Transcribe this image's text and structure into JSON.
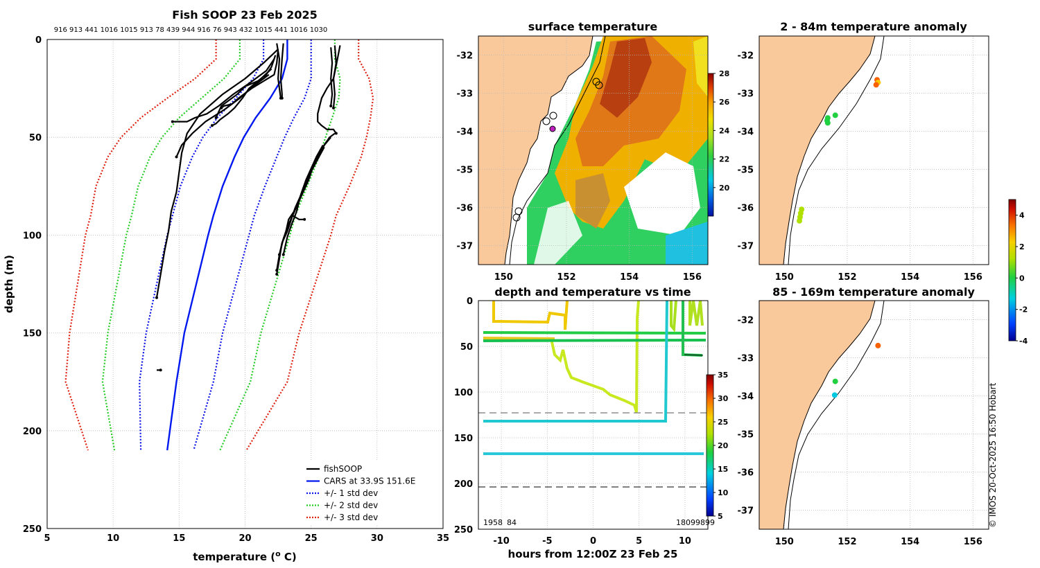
{
  "colors": {
    "land": "#F9C99B",
    "fishsoop": "#000000",
    "cars": "#0018F0",
    "std1": "#0A10E8",
    "std2": "#22CC22",
    "std3": "#E02010",
    "grid": "#b8b8b8"
  },
  "chart_data": [
    {
      "type": "line",
      "title": "Fish SOOP 23 Feb 2025",
      "top_numbers": "916 913 441 1016 1015 913 78 439 944 916 76 943 432 1015 441 1016 1030",
      "xlabel": "temperature (",
      "xlabel_sup": "o",
      "xlabel_tail": " C)",
      "ylabel": "depth (m)",
      "xlim": [
        5,
        35
      ],
      "ylim": [
        250,
        0
      ],
      "xticks": [
        "5",
        "10",
        "15",
        "20",
        "25",
        "30",
        "35"
      ],
      "yticks": [
        "0",
        "50",
        "100",
        "150",
        "200",
        "250"
      ],
      "legend_position": "bottom-right",
      "legend": [
        {
          "label": "fishSOOP",
          "style": "solid",
          "color": "#000000"
        },
        {
          "label": "CARS at 33.9S 151.6E",
          "style": "solid",
          "color": "#0018F0"
        },
        {
          "label": "+/- 1 std dev",
          "style": "dotted",
          "color": "#0A10E8"
        },
        {
          "label": "+/- 2 std dev",
          "style": "dotted",
          "color": "#22CC22"
        },
        {
          "label": "+/- 3 std dev",
          "style": "dotted",
          "color": "#E02010"
        }
      ],
      "cars_depth": [
        0,
        10,
        20,
        30,
        40,
        50,
        60,
        75,
        90,
        100,
        125,
        150,
        175,
        210
      ],
      "cars_mean": [
        23.2,
        23.2,
        22.8,
        21.9,
        20.8,
        19.9,
        19.2,
        18.3,
        17.6,
        17.2,
        16.3,
        15.4,
        14.8,
        14.1
      ],
      "cars_std": [
        1.8,
        1.8,
        2.2,
        2.6,
        2.9,
        3.1,
        3.2,
        3.2,
        3.1,
        3.1,
        3.0,
        2.9,
        2.8,
        2.0
      ],
      "fishsoop_profiles": [
        {
          "t": [
            22.4,
            22.6,
            22.5,
            22.6,
            22.7
          ],
          "d": [
            2,
            10,
            20,
            25,
            30
          ]
        },
        {
          "t": [
            22.9,
            22.8,
            22.7,
            22.8,
            22.8
          ],
          "d": [
            2,
            10,
            20,
            28,
            30
          ]
        },
        {
          "t": [
            22.5,
            22.4,
            22.2,
            20.5,
            19.5,
            19.0,
            18.4,
            18.2
          ],
          "d": [
            5,
            12,
            18,
            25,
            30,
            33,
            34,
            35
          ]
        },
        {
          "t": [
            22.3,
            22.0,
            21.4,
            20.0,
            19.4,
            18.2,
            17.8
          ],
          "d": [
            8,
            14,
            20,
            24,
            28,
            34,
            40
          ]
        },
        {
          "t": [
            22.2,
            21.6,
            20.4,
            19.1,
            18.0,
            17.1,
            16.2,
            15.6,
            14.5
          ],
          "d": [
            10,
            16,
            22,
            28,
            34,
            38,
            40,
            42,
            42
          ]
        },
        {
          "t": [
            22.0,
            21.2,
            20.3,
            19.8,
            19.2,
            18.7,
            18.1,
            17.8,
            17.5
          ],
          "d": [
            15,
            20,
            25,
            30,
            35,
            38,
            41,
            43,
            44
          ]
        },
        {
          "t": [
            21.8,
            20.6,
            19.6,
            18.4,
            17.0,
            16.0,
            15.2,
            14.8
          ],
          "d": [
            18,
            24,
            30,
            36,
            42,
            48,
            54,
            60
          ]
        },
        {
          "t": [
            22.5,
            21.4,
            20.0,
            18.3,
            16.6,
            15.6,
            15.2,
            15.0,
            14.8,
            14.4,
            14.2,
            13.9,
            13.6,
            13.3
          ],
          "d": [
            5,
            12,
            20,
            28,
            38,
            48,
            58,
            68,
            78,
            88,
            98,
            108,
            120,
            132
          ]
        },
        {
          "t": [
            13.3,
            13.6
          ],
          "d": [
            169,
            169
          ]
        },
        {
          "t": [
            26.5,
            26.6,
            26.5,
            26.6,
            26.5
          ],
          "d": [
            4,
            12,
            20,
            28,
            34
          ]
        },
        {
          "t": [
            26.8,
            26.9,
            26.7,
            26.8,
            26.7
          ],
          "d": [
            3,
            12,
            20,
            28,
            35
          ]
        },
        {
          "t": [
            27.2,
            27.0,
            26.7,
            26.2,
            25.8,
            25.5,
            25.5,
            25.8,
            26.2,
            26.7,
            26.9
          ],
          "d": [
            3,
            10,
            20,
            25,
            30,
            38,
            42,
            44,
            46,
            46,
            48
          ]
        },
        {
          "t": [
            26.8,
            26.4,
            26.0,
            25.5,
            25.0,
            24.6,
            24.2,
            23.9,
            23.5,
            23.2,
            22.9
          ],
          "d": [
            48,
            50,
            54,
            60,
            66,
            72,
            80,
            88,
            95,
            101,
            110
          ]
        },
        {
          "t": [
            26.5,
            26.0,
            25.5,
            25.1,
            24.8,
            24.4,
            24.0,
            23.6,
            23.2,
            22.9,
            22.6,
            22.4
          ],
          "d": [
            50,
            54,
            60,
            66,
            72,
            78,
            84,
            90,
            96,
            102,
            110,
            118
          ]
        },
        {
          "t": [
            26.2,
            25.8,
            25.3,
            24.9,
            24.6,
            24.2,
            23.8,
            23.5,
            23.2,
            22.8,
            22.6,
            22.4
          ],
          "d": [
            52,
            56,
            62,
            68,
            74,
            80,
            86,
            92,
            98,
            104,
            112,
            120
          ]
        },
        {
          "t": [
            26.0,
            25.6,
            25.2,
            24.8,
            24.4,
            24.1,
            23.7,
            23.3,
            23.1,
            22.8,
            22.6
          ],
          "d": [
            55,
            60,
            65,
            70,
            76,
            82,
            88,
            92,
            98,
            104,
            110
          ]
        },
        {
          "t": [
            25.9,
            25.4,
            25.0,
            24.7,
            24.3,
            24.0,
            23.6,
            24.1,
            24.5
          ],
          "d": [
            54,
            60,
            66,
            72,
            78,
            84,
            90,
            92,
            92
          ]
        }
      ]
    },
    {
      "type": "heatmap",
      "title": "surface temperature",
      "xticks": [
        "150",
        "152",
        "154",
        "156"
      ],
      "yticks": [
        "-32",
        "-33",
        "-34",
        "-35",
        "-36",
        "-37"
      ],
      "xlim": [
        149.2,
        156.5
      ],
      "ylim": [
        -37.5,
        -31.5
      ],
      "colorbar_ticks": [
        "20",
        "22",
        "24",
        "26",
        "28"
      ],
      "colorbar_range": [
        18,
        28
      ]
    },
    {
      "type": "scatter",
      "title": "depth and temperature vs time",
      "xlabel": "hours from 12:00Z 23 Feb 25",
      "xticks": [
        "-10",
        "-5",
        "0",
        "5",
        "10"
      ],
      "yticks": [
        "0",
        "50",
        "100",
        "150",
        "200",
        "250"
      ],
      "xlim": [
        -12.5,
        12.5
      ],
      "ylim": [
        250,
        0
      ],
      "bottom_labels_left": "1958",
      "bottom_labels_left2": "84",
      "bottom_labels_right": "18099899",
      "colorbar_ticks": [
        "5",
        "10",
        "15",
        "20",
        "25",
        "30",
        "35"
      ],
      "colorbar_range": [
        5,
        35
      ],
      "dashed_depths": [
        0,
        123,
        204
      ]
    },
    {
      "type": "scatter",
      "title": "2 - 84m temperature anomaly",
      "xticks": [
        "150",
        "152",
        "154",
        "156"
      ],
      "yticks": [
        "-32",
        "-33",
        "-34",
        "-35",
        "-36",
        "-37"
      ],
      "points": [
        {
          "lon": 152.95,
          "lat": -32.65,
          "anom": 2.8
        },
        {
          "lon": 152.98,
          "lat": -32.72,
          "anom": 2.5
        },
        {
          "lon": 152.92,
          "lat": -32.78,
          "anom": 2.6
        },
        {
          "lon": 151.62,
          "lat": -33.58,
          "anom": -0.5
        },
        {
          "lon": 151.38,
          "lat": -33.65,
          "anom": -0.6
        },
        {
          "lon": 151.36,
          "lat": -33.72,
          "anom": -1.0
        },
        {
          "lon": 151.38,
          "lat": -33.78,
          "anom": -0.8
        },
        {
          "lon": 150.55,
          "lat": -36.05,
          "anom": 0.8
        },
        {
          "lon": 150.52,
          "lat": -36.15,
          "anom": 0.9
        },
        {
          "lon": 150.5,
          "lat": -36.25,
          "anom": 1.0
        },
        {
          "lon": 150.48,
          "lat": -36.35,
          "anom": 1.1
        }
      ]
    },
    {
      "type": "scatter",
      "title": "85 - 169m temperature anomaly",
      "xticks": [
        "150",
        "152",
        "154",
        "156"
      ],
      "yticks": [
        "-32",
        "-33",
        "-34",
        "-35",
        "-36",
        "-37"
      ],
      "points": [
        {
          "lon": 152.98,
          "lat": -32.68,
          "anom": 2.9
        },
        {
          "lon": 151.62,
          "lat": -33.62,
          "anom": -0.2
        },
        {
          "lon": 151.6,
          "lat": -33.98,
          "anom": -2.2
        }
      ],
      "colorbar_ticks": [
        "4",
        "2",
        "0",
        "-2",
        "-4"
      ],
      "colorbar_range": [
        -4,
        5
      ]
    }
  ],
  "copyright": "© IMOS 20-Oct-2025 16:50 Hobart"
}
